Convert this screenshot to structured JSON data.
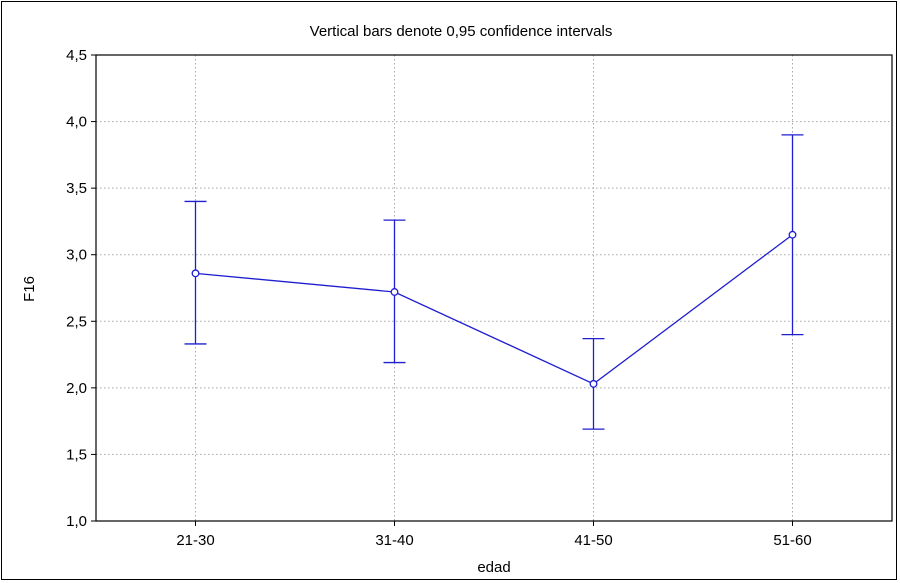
{
  "chart_data": {
    "type": "line",
    "title": "Vertical bars denote 0,95 confidence intervals",
    "xlabel": "edad",
    "ylabel": "F16",
    "categories": [
      "21-30",
      "31-40",
      "41-50",
      "51-60"
    ],
    "series": [
      {
        "values": [
          2.86,
          2.72,
          2.03,
          3.15
        ],
        "ci_lower": [
          2.33,
          2.19,
          1.69,
          2.4
        ],
        "ci_upper": [
          3.4,
          3.26,
          2.37,
          3.9
        ]
      }
    ],
    "ylim": [
      1.0,
      4.5
    ],
    "yticks": [
      1.0,
      1.5,
      2.0,
      2.5,
      3.0,
      3.5,
      4.0,
      4.5
    ],
    "ytick_labels": [
      "1,0",
      "1,5",
      "2,0",
      "2,5",
      "3,0",
      "3,5",
      "4,0",
      "4,5"
    ],
    "grid": true,
    "colors": {
      "series": "#1f1fd0",
      "grid": "#a8a8a8"
    }
  }
}
